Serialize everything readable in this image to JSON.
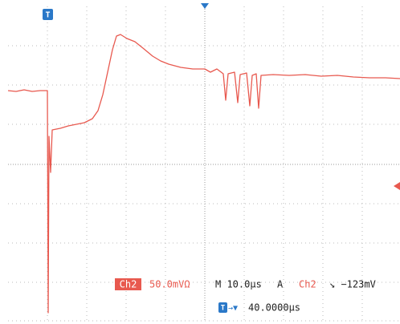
{
  "status": {
    "channel_badge": "Ch2",
    "scale": "50.0mVΩ",
    "timebase": "M 10.0µs",
    "trigger_mode": "A",
    "trigger_source": "Ch2",
    "trigger_level": "↘ −123mV",
    "trigger_position_icon": "T",
    "trigger_offset_arrow": "→▼",
    "trigger_offset": "40.0000µs",
    "top_marker": "T"
  }
}
